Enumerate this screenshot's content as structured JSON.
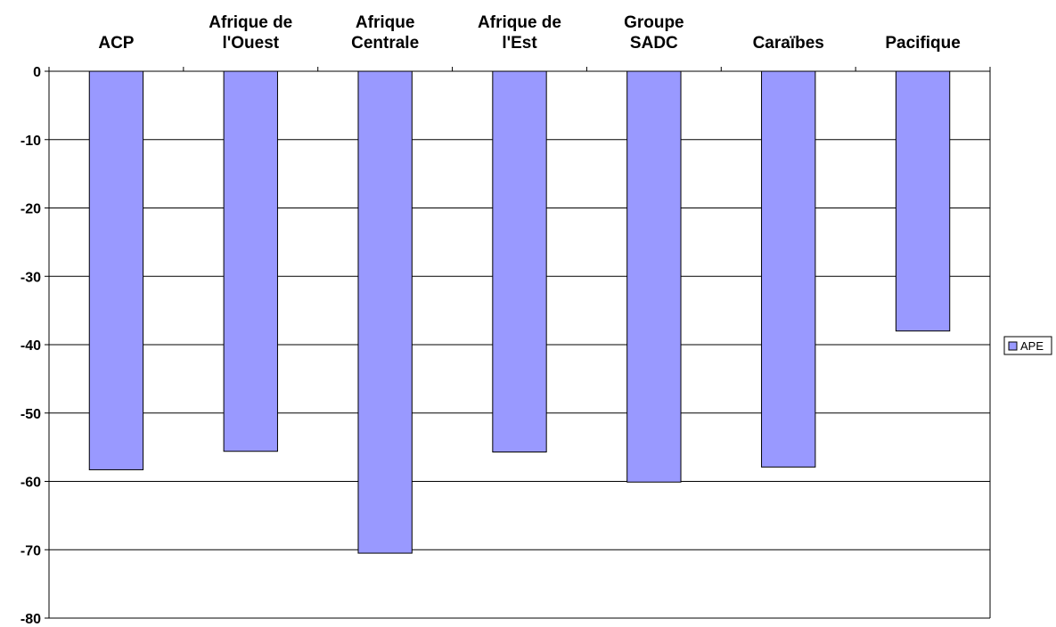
{
  "colors": {
    "bar_fill": "#9999ff",
    "bar_stroke": "#000000",
    "gridline": "#000000",
    "background": "#ffffff"
  },
  "chart_data": {
    "type": "bar",
    "title": "",
    "xlabel": "",
    "ylabel": "",
    "x_axis_position": "top",
    "categories": [
      [
        "ACP"
      ],
      [
        "Afrique de",
        "l'Ouest"
      ],
      [
        "Afrique",
        "Centrale"
      ],
      [
        "Afrique de",
        "l'Est"
      ],
      [
        "Groupe",
        "SADC"
      ],
      [
        "Caraïbes"
      ],
      [
        "Pacifique"
      ]
    ],
    "series": [
      {
        "name": "APE",
        "values": [
          -58.3,
          -55.6,
          -70.5,
          -55.7,
          -60.1,
          -57.9,
          -38.0
        ]
      }
    ],
    "ylim": [
      -80,
      0
    ],
    "yticks": [
      0,
      -10,
      -20,
      -30,
      -40,
      -50,
      -60,
      -70,
      -80
    ],
    "grid": true,
    "legend": {
      "placement": "right",
      "entries": [
        "APE"
      ]
    }
  }
}
